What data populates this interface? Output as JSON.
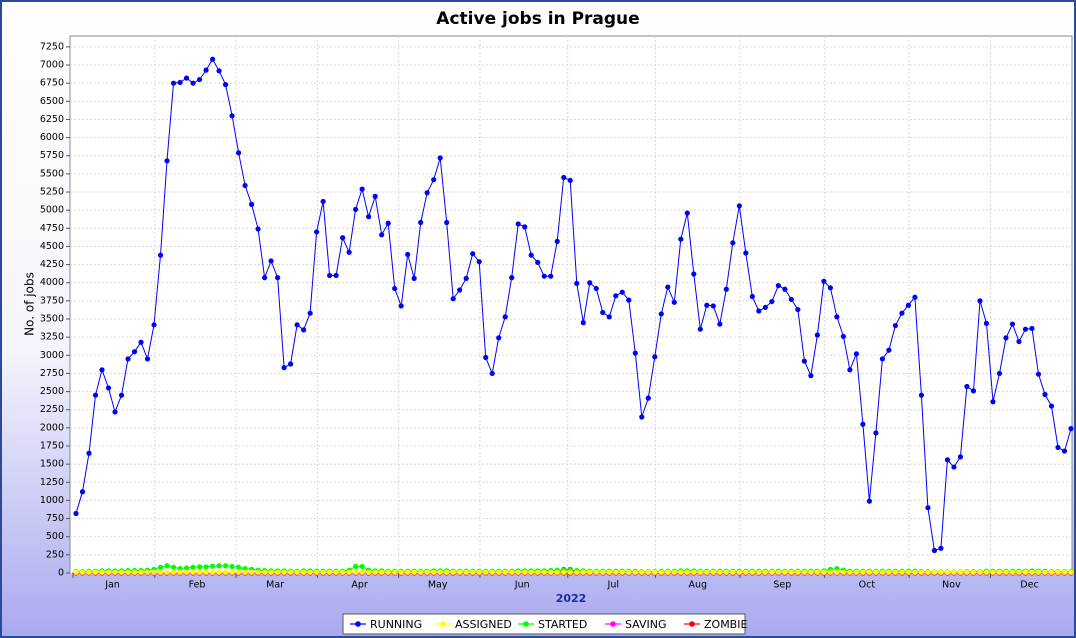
{
  "chart_data": {
    "type": "line",
    "title": "Active jobs in Prague",
    "x_label": "2022",
    "y_label": "No. of jobs",
    "categories": [
      null,
      null,
      null,
      null,
      null,
      "Jan",
      null,
      null,
      null,
      null,
      null,
      null,
      null,
      null,
      null,
      null,
      null,
      null,
      "Feb",
      null,
      null,
      null,
      null,
      null,
      null,
      null,
      null,
      null,
      null,
      null,
      "Mar",
      null,
      null,
      null,
      null,
      null,
      null,
      null,
      null,
      null,
      null,
      null,
      null,
      "Apr",
      null,
      null,
      null,
      null,
      null,
      null,
      null,
      null,
      null,
      null,
      null,
      "May",
      null,
      null,
      null,
      null,
      null,
      null,
      null,
      null,
      null,
      null,
      null,
      null,
      "Jun",
      null,
      null,
      null,
      null,
      null,
      null,
      null,
      null,
      null,
      null,
      null,
      null,
      null,
      "Jul",
      null,
      null,
      null,
      null,
      null,
      null,
      null,
      null,
      null,
      null,
      null,
      null,
      "Aug",
      null,
      null,
      null,
      null,
      null,
      null,
      null,
      null,
      null,
      null,
      null,
      null,
      "Sep",
      null,
      null,
      null,
      null,
      null,
      null,
      null,
      null,
      null,
      null,
      null,
      null,
      "Oct",
      null,
      null,
      null,
      null,
      null,
      null,
      null,
      null,
      null,
      null,
      null,
      null,
      "Nov",
      null,
      null,
      null,
      null,
      null,
      null,
      null,
      null,
      null,
      null,
      null,
      "Dec",
      null,
      null,
      null,
      null,
      null,
      null,
      null
    ],
    "series": [
      {
        "name": "RUNNING",
        "color": "#0000ff",
        "values": [
          820,
          1120,
          1650,
          2450,
          2800,
          2550,
          2220,
          2450,
          2950,
          3050,
          3180,
          2950,
          3420,
          4380,
          5680,
          6750,
          6760,
          6820,
          6750,
          6800,
          6930,
          7080,
          6920,
          6730,
          6300,
          5790,
          5340,
          5080,
          4740,
          4070,
          4300,
          4070,
          2830,
          2880,
          3420,
          3350,
          3580,
          4700,
          5120,
          4100,
          4100,
          4620,
          4420,
          5010,
          5290,
          4910,
          5190,
          4660,
          4820,
          3920,
          3680,
          4390,
          4060,
          4830,
          5240,
          5420,
          5720,
          4830,
          3780,
          3900,
          4060,
          4400,
          4290,
          2970,
          2750,
          3240,
          3530,
          4070,
          4810,
          4770,
          4380,
          4280,
          4090,
          4090,
          4570,
          5450,
          5410,
          3990,
          3450,
          4000,
          3920,
          3590,
          3530,
          3820,
          3870,
          3760,
          3030,
          2150,
          2410,
          2980,
          3570,
          3940,
          3730,
          4600,
          4960,
          4120,
          3360,
          3690,
          3680,
          3430,
          3910,
          4550,
          5060,
          4410,
          3810,
          3610,
          3660,
          3740,
          3960,
          3910,
          3770,
          3630,
          2920,
          2720,
          3280,
          4020,
          3930,
          3530,
          3260,
          2800,
          3020,
          2050,
          990,
          1930,
          2950,
          3070,
          3410,
          3580,
          3690,
          3800,
          2450,
          900,
          310,
          340,
          1560,
          1460,
          1600,
          2570,
          2510,
          3750,
          3440,
          2360,
          2750,
          3240,
          3430,
          3190,
          3360,
          3370,
          2740,
          2460,
          2300,
          1730,
          1680,
          1990
        ]
      },
      {
        "name": "ASSIGNED",
        "color": "#ffff00",
        "values": [
          10,
          10,
          10,
          10,
          10,
          10,
          10,
          10,
          10,
          10,
          10,
          10,
          10,
          10,
          10,
          10,
          10,
          10,
          10,
          10,
          10,
          10,
          10,
          10,
          10,
          10,
          10,
          10,
          10,
          10,
          10,
          10,
          10,
          10,
          10,
          10,
          10,
          10,
          10,
          10,
          10,
          10,
          10,
          10,
          10,
          10,
          10,
          10,
          10,
          10,
          10,
          10,
          10,
          10,
          10,
          10,
          10,
          10,
          10,
          10,
          10,
          10,
          10,
          10,
          10,
          10,
          10,
          10,
          10,
          10,
          10,
          10,
          10,
          10,
          10,
          10,
          10,
          10,
          10,
          10,
          10,
          10,
          10,
          10,
          10,
          10,
          10,
          10,
          10,
          10,
          10,
          10,
          10,
          10,
          10,
          10,
          10,
          10,
          10,
          10,
          10,
          10,
          10,
          10,
          10,
          10,
          10,
          10,
          10,
          10,
          10,
          10,
          10,
          10,
          10,
          10,
          10,
          10,
          10,
          10,
          10,
          10,
          10,
          10,
          10,
          10,
          10,
          10,
          10,
          10,
          10,
          10,
          10,
          10,
          10,
          10,
          10,
          10,
          10,
          10,
          10,
          10,
          10,
          10,
          10,
          10,
          10,
          10,
          10,
          10,
          10,
          10,
          10,
          10
        ]
      },
      {
        "name": "STARTED",
        "color": "#00ff00",
        "values": [
          20,
          20,
          25,
          25,
          30,
          30,
          30,
          30,
          35,
          35,
          35,
          40,
          50,
          80,
          100,
          80,
          60,
          70,
          80,
          85,
          85,
          95,
          100,
          100,
          90,
          80,
          60,
          50,
          40,
          35,
          30,
          30,
          30,
          25,
          25,
          30,
          30,
          25,
          25,
          25,
          25,
          25,
          40,
          90,
          90,
          40,
          30,
          30,
          25,
          25,
          25,
          25,
          25,
          25,
          25,
          30,
          30,
          30,
          25,
          25,
          25,
          25,
          25,
          25,
          25,
          25,
          25,
          25,
          30,
          30,
          30,
          30,
          30,
          35,
          40,
          40,
          40,
          35,
          30,
          25,
          25,
          25,
          25,
          25,
          25,
          25,
          25,
          20,
          20,
          20,
          25,
          25,
          25,
          30,
          30,
          30,
          25,
          25,
          25,
          25,
          25,
          25,
          25,
          25,
          25,
          25,
          25,
          25,
          25,
          25,
          25,
          25,
          25,
          25,
          25,
          30,
          50,
          60,
          40,
          25,
          25,
          25,
          25,
          25,
          25,
          25,
          25,
          25,
          25,
          25,
          20,
          20,
          15,
          15,
          15,
          15,
          15,
          20,
          20,
          20,
          25,
          25,
          25,
          25,
          25,
          25,
          25,
          30,
          25,
          25,
          20,
          20,
          20,
          20
        ]
      },
      {
        "name": "SAVING",
        "color": "#ff00ff",
        "values": [
          0,
          0,
          0,
          0,
          0,
          0,
          0,
          0,
          0,
          0,
          0,
          0,
          0,
          0,
          0,
          0,
          0,
          0,
          0,
          0,
          0,
          0,
          0,
          0,
          0,
          0,
          0,
          0,
          0,
          0,
          0,
          0,
          0,
          0,
          0,
          0,
          0,
          0,
          0,
          0,
          0,
          0,
          0,
          0,
          0,
          0,
          0,
          0,
          0,
          0,
          0,
          0,
          0,
          0,
          0,
          0,
          0,
          0,
          0,
          0,
          0,
          0,
          0,
          0,
          0,
          0,
          0,
          0,
          0,
          0,
          0,
          0,
          0,
          0,
          0,
          50,
          50,
          0,
          0,
          0,
          0,
          0,
          0,
          0,
          0,
          0,
          0,
          0,
          0,
          0,
          0,
          0,
          0,
          0,
          0,
          0,
          0,
          0,
          0,
          0,
          0,
          0,
          0,
          0,
          0,
          0,
          0,
          0,
          0,
          0,
          0,
          0,
          0,
          0,
          0,
          0,
          0,
          0,
          0,
          0,
          0,
          0,
          0,
          0,
          0,
          0,
          0,
          0,
          0,
          0,
          0,
          0,
          0,
          0,
          0,
          0,
          0,
          0,
          0,
          0,
          0,
          0,
          0,
          0,
          0,
          0,
          0,
          0,
          0,
          0,
          0,
          0,
          0,
          0
        ]
      },
      {
        "name": "ZOMBIE",
        "color": "#ff0000",
        "values": [
          0,
          0,
          0,
          0,
          0,
          0,
          0,
          0,
          0,
          0,
          0,
          0,
          0,
          0,
          0,
          0,
          0,
          0,
          0,
          0,
          0,
          0,
          0,
          0,
          0,
          0,
          0,
          0,
          0,
          0,
          0,
          0,
          0,
          0,
          0,
          0,
          0,
          0,
          0,
          0,
          0,
          0,
          0,
          0,
          0,
          0,
          0,
          0,
          0,
          0,
          0,
          0,
          0,
          0,
          0,
          0,
          0,
          0,
          0,
          0,
          0,
          0,
          0,
          0,
          0,
          0,
          0,
          0,
          0,
          0,
          0,
          0,
          0,
          0,
          0,
          0,
          0,
          0,
          0,
          0,
          0,
          0,
          0,
          0,
          0,
          0,
          0,
          0,
          0,
          0,
          0,
          0,
          0,
          0,
          0,
          0,
          0,
          0,
          0,
          0,
          0,
          0,
          0,
          0,
          0,
          0,
          0,
          0,
          0,
          0,
          0,
          0,
          0,
          0,
          0,
          0,
          0,
          0,
          0,
          0,
          0,
          0,
          0,
          0,
          0,
          0,
          0,
          0,
          0,
          0,
          0,
          0,
          0,
          0,
          0,
          0,
          0,
          0,
          0,
          0,
          0,
          0,
          0,
          0,
          0,
          0,
          0,
          0,
          0,
          0,
          0,
          0,
          0,
          0
        ]
      }
    ],
    "ylim": [
      0,
      7400
    ],
    "yticks": [
      0,
      250,
      500,
      750,
      1000,
      1250,
      1500,
      1750,
      2000,
      2250,
      2500,
      2750,
      3000,
      3250,
      3500,
      3750,
      4000,
      4250,
      4500,
      4750,
      5000,
      5250,
      5500,
      5750,
      6000,
      6250,
      6500,
      6750,
      7000,
      7250
    ],
    "grid": true,
    "legend": "bottom"
  }
}
